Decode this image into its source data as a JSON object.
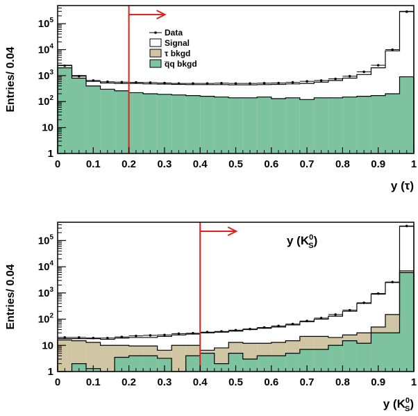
{
  "chart_data": [
    {
      "type": "histogram",
      "ylabel": "Entries/ 0.04",
      "xlabel": "y (τ)",
      "xlim": [
        0,
        1
      ],
      "ylim": [
        1,
        500000
      ],
      "yscale": "log",
      "bin_width": 0.04,
      "x_ticks": [
        "0",
        "0.1",
        "0.2",
        "0.3",
        "0.4",
        "0.5",
        "0.6",
        "0.7",
        "0.8",
        "0.9",
        "1"
      ],
      "y_ticks": [
        {
          "value": 1,
          "label": "1"
        },
        {
          "value": 10,
          "label": "10"
        },
        {
          "value": 100,
          "label": "10",
          "exp": "2"
        },
        {
          "value": 1000,
          "label": "10",
          "exp": "3"
        },
        {
          "value": 10000,
          "label": "10",
          "exp": "4"
        },
        {
          "value": 100000,
          "label": "10",
          "exp": "5"
        }
      ],
      "cut_value": 0.2,
      "cut_color": "#e3201b",
      "legend": {
        "placement": "top-center",
        "items": [
          {
            "label": "Data",
            "kind": "marker"
          },
          {
            "label": "Signal",
            "kind": "box",
            "color": "#ffffff"
          },
          {
            "label": "τ bkgd",
            "kind": "box",
            "color": "#d1c6a4"
          },
          {
            "label": "q̅q bkgd",
            "kind": "box",
            "color": "#7dc3a0"
          }
        ]
      },
      "colors": {
        "qq": "#7dc3a0",
        "tau": "#d1c6a4",
        "signal": "#ffffff"
      },
      "series": {
        "qq": [
          2000,
          800,
          400,
          300,
          260,
          220,
          200,
          190,
          180,
          170,
          160,
          150,
          140,
          140,
          150,
          130,
          140,
          120,
          140,
          140,
          150,
          160,
          170,
          200,
          900
        ],
        "total": [
          2500,
          1000,
          600,
          520,
          500,
          500,
          480,
          470,
          460,
          450,
          450,
          450,
          440,
          440,
          450,
          460,
          480,
          500,
          560,
          650,
          800,
          1100,
          2000,
          9000,
          300000
        ],
        "data": [
          2400,
          950,
          650,
          580,
          560,
          550,
          540,
          520,
          500,
          500,
          500,
          510,
          500,
          500,
          510,
          520,
          550,
          600,
          650,
          750,
          950,
          1400,
          2500,
          10000,
          290000
        ]
      }
    },
    {
      "type": "histogram",
      "ylabel": "Entries/ 0.04",
      "xlabel": "y (K",
      "xlabel_sup": "0",
      "xlabel_sub": "S",
      "xlabel_close": ")",
      "annotation": "y (K",
      "annotation_sup": "0",
      "annotation_sub": "S",
      "annotation_close": ")",
      "xlim": [
        0,
        1
      ],
      "ylim": [
        1,
        500000
      ],
      "yscale": "log",
      "bin_width": 0.04,
      "x_ticks": [
        "0",
        "0.1",
        "0.2",
        "0.3",
        "0.4",
        "0.5",
        "0.6",
        "0.7",
        "0.8",
        "0.9",
        "1"
      ],
      "y_ticks": [
        {
          "value": 1,
          "label": "1"
        },
        {
          "value": 10,
          "label": "10"
        },
        {
          "value": 100,
          "label": "10",
          "exp": "2"
        },
        {
          "value": 1000,
          "label": "10",
          "exp": "3"
        },
        {
          "value": 10000,
          "label": "10",
          "exp": "4"
        },
        {
          "value": 100000,
          "label": "10",
          "exp": "5"
        }
      ],
      "cut_value": 0.4,
      "cut_color": "#e3201b",
      "colors": {
        "qq": "#7dc3a0",
        "tau": "#d1c6a4",
        "signal": "#ffffff"
      },
      "series": {
        "qq": [
          1,
          2,
          1.3,
          1,
          3.5,
          4,
          4,
          3.2,
          1,
          4,
          5,
          2,
          5,
          3,
          4,
          4,
          5,
          7,
          7,
          10,
          15,
          12,
          30,
          30,
          6000
        ],
        "tau": [
          16,
          15,
          13,
          10,
          10,
          9.5,
          9.5,
          6.5,
          10,
          10,
          6.5,
          8,
          13,
          12,
          12,
          13,
          15,
          22,
          22,
          20,
          25,
          30,
          50,
          150,
          7000
        ],
        "total": [
          18,
          18,
          18,
          17,
          19,
          20,
          20,
          22,
          25,
          27,
          30,
          32,
          35,
          40,
          45,
          50,
          60,
          80,
          100,
          130,
          200,
          400,
          900,
          2500,
          350000
        ],
        "data": [
          20,
          20,
          19,
          19,
          21,
          23,
          24,
          25,
          28,
          29,
          32,
          34,
          38,
          42,
          48,
          55,
          65,
          85,
          110,
          150,
          220,
          420,
          950,
          2600,
          360000
        ]
      }
    }
  ]
}
